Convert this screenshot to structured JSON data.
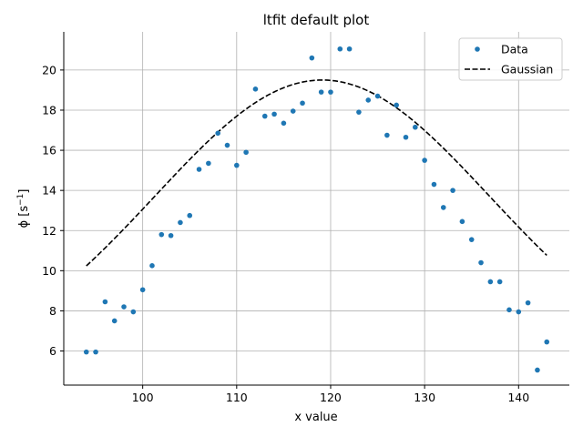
{
  "chart_data": {
    "type": "scatter",
    "title": "ltfit default plot",
    "xlabel": "x value",
    "ylabel": "ϕ [s⁻¹]",
    "ylabel_main": "ϕ [s",
    "ylabel_sup": "−1",
    "ylabel_close": "]",
    "xlim": [
      91.6,
      145.4
    ],
    "ylim": [
      4.3,
      21.9
    ],
    "xticks": [
      100,
      110,
      120,
      130,
      140
    ],
    "yticks": [
      6,
      8,
      10,
      12,
      14,
      16,
      18,
      20
    ],
    "grid": true,
    "legend_placement": "top-right",
    "series": [
      {
        "name": "Data",
        "kind": "markers",
        "color": "#1f77b4",
        "x": [
          94,
          95,
          96,
          97,
          98,
          99,
          100,
          101,
          102,
          103,
          104,
          105,
          106,
          107,
          108,
          109,
          110,
          111,
          112,
          113,
          114,
          115,
          116,
          117,
          118,
          119,
          120,
          121,
          122,
          123,
          124,
          125,
          126,
          127,
          128,
          129,
          130,
          131,
          132,
          133,
          134,
          135,
          136,
          137,
          138,
          139,
          140,
          141,
          142,
          143
        ],
        "y": [
          5.95,
          5.95,
          8.45,
          7.5,
          8.2,
          7.95,
          9.05,
          10.25,
          11.8,
          11.75,
          12.4,
          12.75,
          15.05,
          15.35,
          16.85,
          16.25,
          15.25,
          15.9,
          19.05,
          17.7,
          17.8,
          17.35,
          17.95,
          18.35,
          20.6,
          18.9,
          18.9,
          21.05,
          21.05,
          17.9,
          18.5,
          18.7,
          16.75,
          18.25,
          16.65,
          17.15,
          15.5,
          14.3,
          13.15,
          14.0,
          12.45,
          11.55,
          10.4,
          9.45,
          9.45,
          8.05,
          7.95,
          8.4,
          5.05,
          6.45
        ]
      },
      {
        "name": "Gaussian",
        "kind": "dashed-line",
        "color": "#000000",
        "amplitude": 14.7,
        "center": 119.1,
        "sigma": 17.8,
        "offset": 4.8,
        "x_range": [
          94,
          143
        ]
      }
    ]
  }
}
